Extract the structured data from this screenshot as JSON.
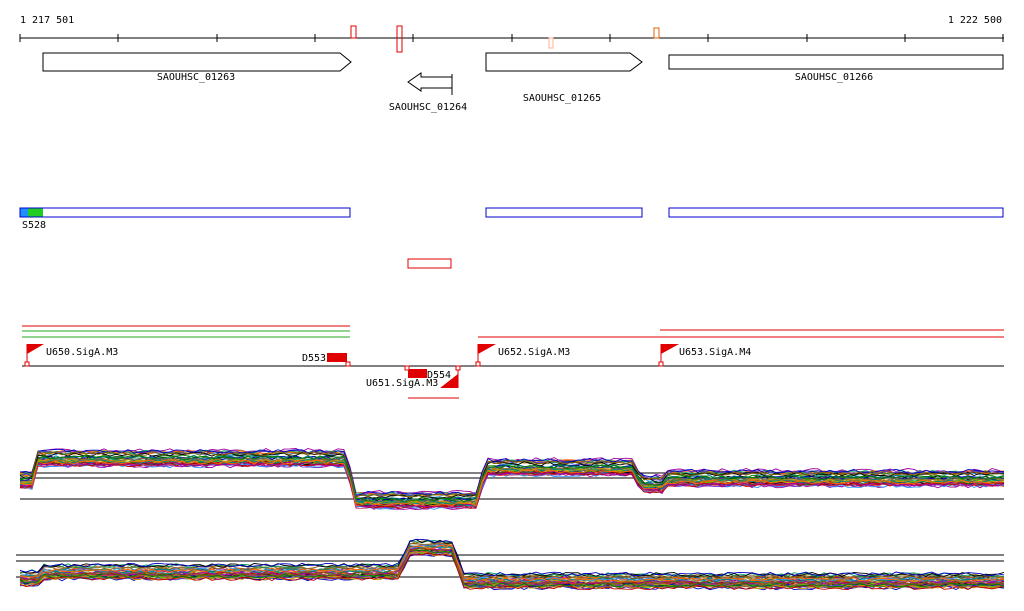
{
  "coordinates": {
    "start": "1 217 501",
    "end": "1 222 500"
  },
  "genes": [
    {
      "id": "SAOUHSC_01263",
      "strand": "+"
    },
    {
      "id": "SAOUHSC_01264",
      "strand": "-"
    },
    {
      "id": "SAOUHSC_01265",
      "strand": "+"
    },
    {
      "id": "SAOUHSC_01266",
      "strand": "+"
    }
  ],
  "segments": {
    "label": "S528"
  },
  "transcription_units": [
    {
      "label": "U650.SigA.M3"
    },
    {
      "label": "U651.SigA.M3"
    },
    {
      "label": "U652.SigA.M3"
    },
    {
      "label": "U653.SigA.M4"
    }
  ],
  "downstream_markers": [
    {
      "label": "D553"
    },
    {
      "label": "D554"
    }
  ],
  "colors": {
    "gene_outline": "#000000",
    "segment_outline": "#0000cc",
    "segment_start_blue": "#1e90ff",
    "segment_start_green": "#22cc22",
    "red_feature": "#e00000",
    "green_line": "#22aa22",
    "axis": "#000000"
  },
  "expression_panels": [
    {
      "name": "upper-expression-panel"
    },
    {
      "name": "lower-expression-panel"
    }
  ]
}
